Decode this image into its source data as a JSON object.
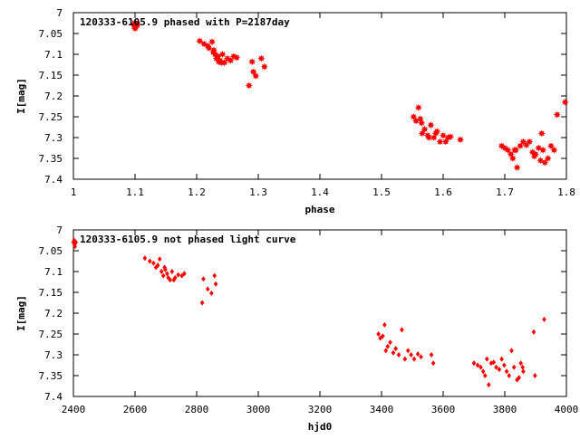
{
  "chart_data": [
    {
      "type": "scatter",
      "title": "120333-6105.9 phased with P=2187day",
      "xlabel": "phase",
      "ylabel": "I[mag]",
      "xlim": [
        1,
        1.8
      ],
      "ylim": [
        7,
        7.4
      ],
      "y_inverted": true,
      "grid": false,
      "marker_color": "#ff0000",
      "marker": "star",
      "xticks": [
        "1",
        "1.1",
        "1.2",
        "1.3",
        "1.4",
        "1.5",
        "1.6",
        "1.7",
        "1.8"
      ],
      "yticks": [
        "7",
        "7.05",
        "7.1",
        "7.15",
        "7.2",
        "7.25",
        "7.3",
        "7.35",
        "7.4"
      ],
      "x": [
        1.098,
        1.101,
        1.103,
        1.099,
        1.1,
        1.104,
        1.205,
        1.212,
        1.218,
        1.22,
        1.225,
        1.228,
        1.23,
        1.232,
        1.235,
        1.238,
        1.24,
        1.242,
        1.245,
        1.25,
        1.255,
        1.26,
        1.265,
        1.227,
        1.236,
        1.285,
        1.29,
        1.292,
        1.296,
        1.305,
        1.31,
        1.552,
        1.556,
        1.56,
        1.563,
        1.566,
        1.57,
        1.575,
        1.58,
        1.585,
        1.59,
        1.595,
        1.6,
        1.604,
        1.608,
        1.612,
        1.628,
        1.565,
        1.577,
        1.588,
        1.695,
        1.7,
        1.705,
        1.71,
        1.713,
        1.716,
        1.72,
        1.725,
        1.73,
        1.735,
        1.74,
        1.745,
        1.75,
        1.755,
        1.76,
        1.762,
        1.765,
        1.77,
        1.775,
        1.78,
        1.785,
        1.798,
        1.718,
        1.748,
        1.758
      ],
      "y": [
        7.03,
        7.035,
        7.03,
        7.025,
        7.038,
        7.028,
        7.068,
        7.075,
        7.08,
        7.085,
        7.07,
        7.09,
        7.1,
        7.11,
        7.105,
        7.115,
        7.12,
        7.1,
        7.12,
        7.11,
        7.115,
        7.105,
        7.108,
        7.095,
        7.118,
        7.175,
        7.118,
        7.142,
        7.152,
        7.11,
        7.13,
        7.25,
        7.26,
        7.228,
        7.255,
        7.29,
        7.28,
        7.295,
        7.27,
        7.3,
        7.285,
        7.31,
        7.295,
        7.31,
        7.3,
        7.298,
        7.305,
        7.265,
        7.3,
        7.29,
        7.32,
        7.325,
        7.33,
        7.34,
        7.35,
        7.33,
        7.372,
        7.32,
        7.31,
        7.318,
        7.31,
        7.335,
        7.34,
        7.325,
        7.29,
        7.33,
        7.36,
        7.35,
        7.32,
        7.33,
        7.245,
        7.215,
        7.33,
        7.345,
        7.355
      ]
    },
    {
      "type": "scatter",
      "title": "120333-6105.9 not phased light curve",
      "xlabel": "hjd0",
      "ylabel": "I[mag]",
      "xlim": [
        2400,
        4000
      ],
      "ylim": [
        7,
        7.4
      ],
      "y_inverted": true,
      "grid": false,
      "marker_color": "#ff0000",
      "marker": "diamond",
      "xticks": [
        "2400",
        "2600",
        "2800",
        "3000",
        "3200",
        "3400",
        "3600",
        "3800",
        "4000"
      ],
      "yticks": [
        "7",
        "7.05",
        "7.1",
        "7.15",
        "7.2",
        "7.25",
        "7.3",
        "7.35",
        "7.4"
      ],
      "x": [
        2400,
        2402,
        2404,
        2406,
        2405,
        2408,
        2632,
        2648,
        2660,
        2668,
        2674,
        2680,
        2686,
        2692,
        2698,
        2704,
        2708,
        2714,
        2720,
        2726,
        2730,
        2740,
        2752,
        2760,
        2696,
        2818,
        2822,
        2836,
        2848,
        2858,
        2862,
        3390,
        3396,
        3404,
        3410,
        3414,
        3420,
        3428,
        3438,
        3446,
        3456,
        3466,
        3476,
        3486,
        3496,
        3506,
        3518,
        3528,
        3562,
        3568,
        3700,
        3712,
        3722,
        3730,
        3736,
        3742,
        3748,
        3756,
        3764,
        3772,
        3782,
        3790,
        3798,
        3806,
        3814,
        3822,
        3830,
        3840,
        3846,
        3852,
        3858,
        3894,
        3898,
        3928,
        3860
      ],
      "y": [
        7.03,
        7.025,
        7.035,
        7.028,
        7.04,
        7.03,
        7.068,
        7.075,
        7.08,
        7.09,
        7.085,
        7.07,
        7.1,
        7.11,
        7.095,
        7.105,
        7.115,
        7.12,
        7.1,
        7.12,
        7.115,
        7.108,
        7.11,
        7.105,
        7.09,
        7.175,
        7.118,
        7.142,
        7.152,
        7.11,
        7.13,
        7.25,
        7.26,
        7.255,
        7.228,
        7.29,
        7.28,
        7.27,
        7.295,
        7.285,
        7.3,
        7.24,
        7.31,
        7.29,
        7.3,
        7.31,
        7.298,
        7.305,
        7.3,
        7.32,
        7.32,
        7.325,
        7.33,
        7.34,
        7.35,
        7.31,
        7.372,
        7.32,
        7.318,
        7.33,
        7.335,
        7.31,
        7.325,
        7.34,
        7.35,
        7.29,
        7.33,
        7.36,
        7.355,
        7.32,
        7.33,
        7.245,
        7.35,
        7.215,
        7.34
      ]
    }
  ]
}
